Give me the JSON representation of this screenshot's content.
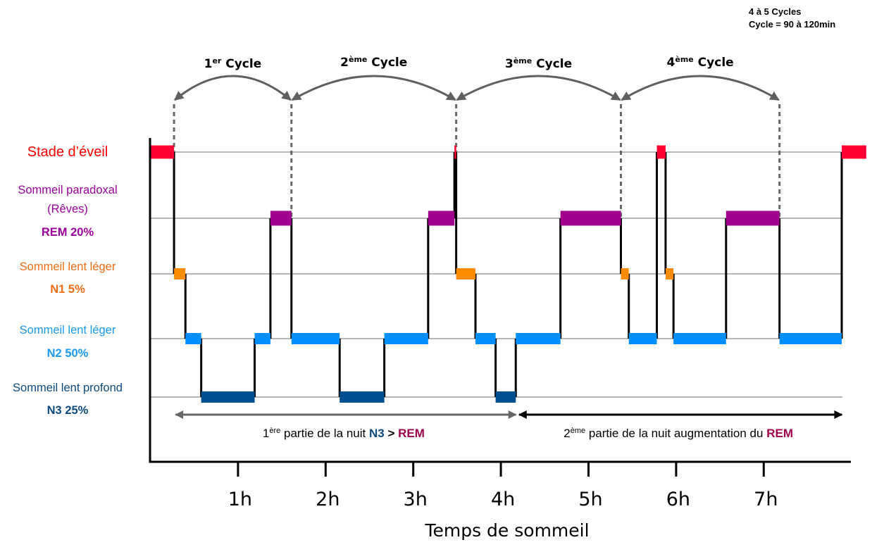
{
  "header_note": {
    "line1": "4 à 5 Cycles",
    "line2": "Cycle = 90 à 120min"
  },
  "chart_data": {
    "type": "line",
    "subtype": "hypnogram (step)",
    "title": "",
    "xlabel": "Temps de sommeil",
    "ylabel": "",
    "x_unit": "h",
    "xlim": [
      0,
      8.3
    ],
    "grid": true,
    "x_ticks": [
      1,
      2,
      3,
      4,
      5,
      6,
      7
    ],
    "x_tick_labels": [
      "1h",
      "2h",
      "3h",
      "4h",
      "5h",
      "6h",
      "7h"
    ],
    "stages": [
      {
        "key": "wake",
        "label": "Stade d’éveil",
        "sublabel": "",
        "percent_label": "",
        "color": "#ff0033",
        "text_color": "#ff0000"
      },
      {
        "key": "rem",
        "label": "Sommeil paradoxal",
        "sublabel": "(Rêves)",
        "percent_label": "REM 20%",
        "color": "#a0008c",
        "text_color": "#9c009c"
      },
      {
        "key": "n1",
        "label": "Sommeil lent léger",
        "sublabel": "",
        "percent_label": "N1 5%",
        "color": "#ff8c00",
        "text_color": "#f26b16"
      },
      {
        "key": "n2",
        "label": "Sommeil lent léger",
        "sublabel": "",
        "percent_label": "N2 50%",
        "color": "#008fff",
        "text_color": "#1a9bf0"
      },
      {
        "key": "n3",
        "label": "Sommeil lent profond",
        "sublabel": "",
        "percent_label": "N3 25%",
        "color": "#004f8f",
        "text_color": "#0d4a7f"
      }
    ],
    "segments": [
      {
        "stage": "wake",
        "start": 0.0,
        "end": 0.27
      },
      {
        "stage": "n1",
        "start": 0.27,
        "end": 0.4
      },
      {
        "stage": "n2",
        "start": 0.4,
        "end": 0.58
      },
      {
        "stage": "n3",
        "start": 0.58,
        "end": 1.19
      },
      {
        "stage": "n2",
        "start": 1.19,
        "end": 1.37
      },
      {
        "stage": "rem",
        "start": 1.37,
        "end": 1.61
      },
      {
        "stage": "n2",
        "start": 1.61,
        "end": 2.16
      },
      {
        "stage": "n3",
        "start": 2.16,
        "end": 2.67
      },
      {
        "stage": "n2",
        "start": 2.67,
        "end": 3.17
      },
      {
        "stage": "rem",
        "start": 3.17,
        "end": 3.47
      },
      {
        "stage": "wake",
        "start": 3.47,
        "end": 3.49
      },
      {
        "stage": "n1",
        "start": 3.49,
        "end": 3.71
      },
      {
        "stage": "n2",
        "start": 3.71,
        "end": 3.94
      },
      {
        "stage": "n3",
        "start": 3.94,
        "end": 4.17
      },
      {
        "stage": "n2",
        "start": 4.17,
        "end": 4.68
      },
      {
        "stage": "rem",
        "start": 4.68,
        "end": 5.37
      },
      {
        "stage": "n1",
        "start": 5.37,
        "end": 5.46
      },
      {
        "stage": "n2",
        "start": 5.46,
        "end": 5.78
      },
      {
        "stage": "wake",
        "start": 5.78,
        "end": 5.88
      },
      {
        "stage": "n1",
        "start": 5.88,
        "end": 5.97
      },
      {
        "stage": "n2",
        "start": 5.97,
        "end": 6.57
      },
      {
        "stage": "rem",
        "start": 6.57,
        "end": 7.18
      },
      {
        "stage": "n2",
        "start": 7.18,
        "end": 7.89
      },
      {
        "stage": "wake",
        "start": 7.89,
        "end": 8.17
      }
    ],
    "cycles": [
      {
        "num": "1",
        "sup": "er",
        "word": " Cycle",
        "start": 0.27,
        "end": 1.61
      },
      {
        "num": "2",
        "sup": "ème",
        "word": " Cycle",
        "start": 1.61,
        "end": 3.49
      },
      {
        "num": "3",
        "sup": "ème",
        "word": " Cycle",
        "start": 3.49,
        "end": 5.37
      },
      {
        "num": "4",
        "sup": "ème",
        "word": " Cycle",
        "start": 5.37,
        "end": 7.18
      }
    ],
    "periods": [
      {
        "num": "1",
        "sup": "ère",
        "text": " partie de la nuit ",
        "em1": "N3",
        "em1_color": "#0d4a80",
        "sep": " > ",
        "em2": "REM",
        "em2_color": "#a0004a",
        "start": 0.28,
        "end": 4.18,
        "arrow_color": "#666666"
      },
      {
        "num": "2",
        "sup": "ème",
        "text": " partie de la nuit augmentation du ",
        "em1": "",
        "em1_color": "#0d4a80",
        "sep": "",
        "em2": "REM",
        "em2_color": "#a0004a",
        "start": 4.2,
        "end": 7.9,
        "arrow_color": "#000000"
      }
    ]
  }
}
